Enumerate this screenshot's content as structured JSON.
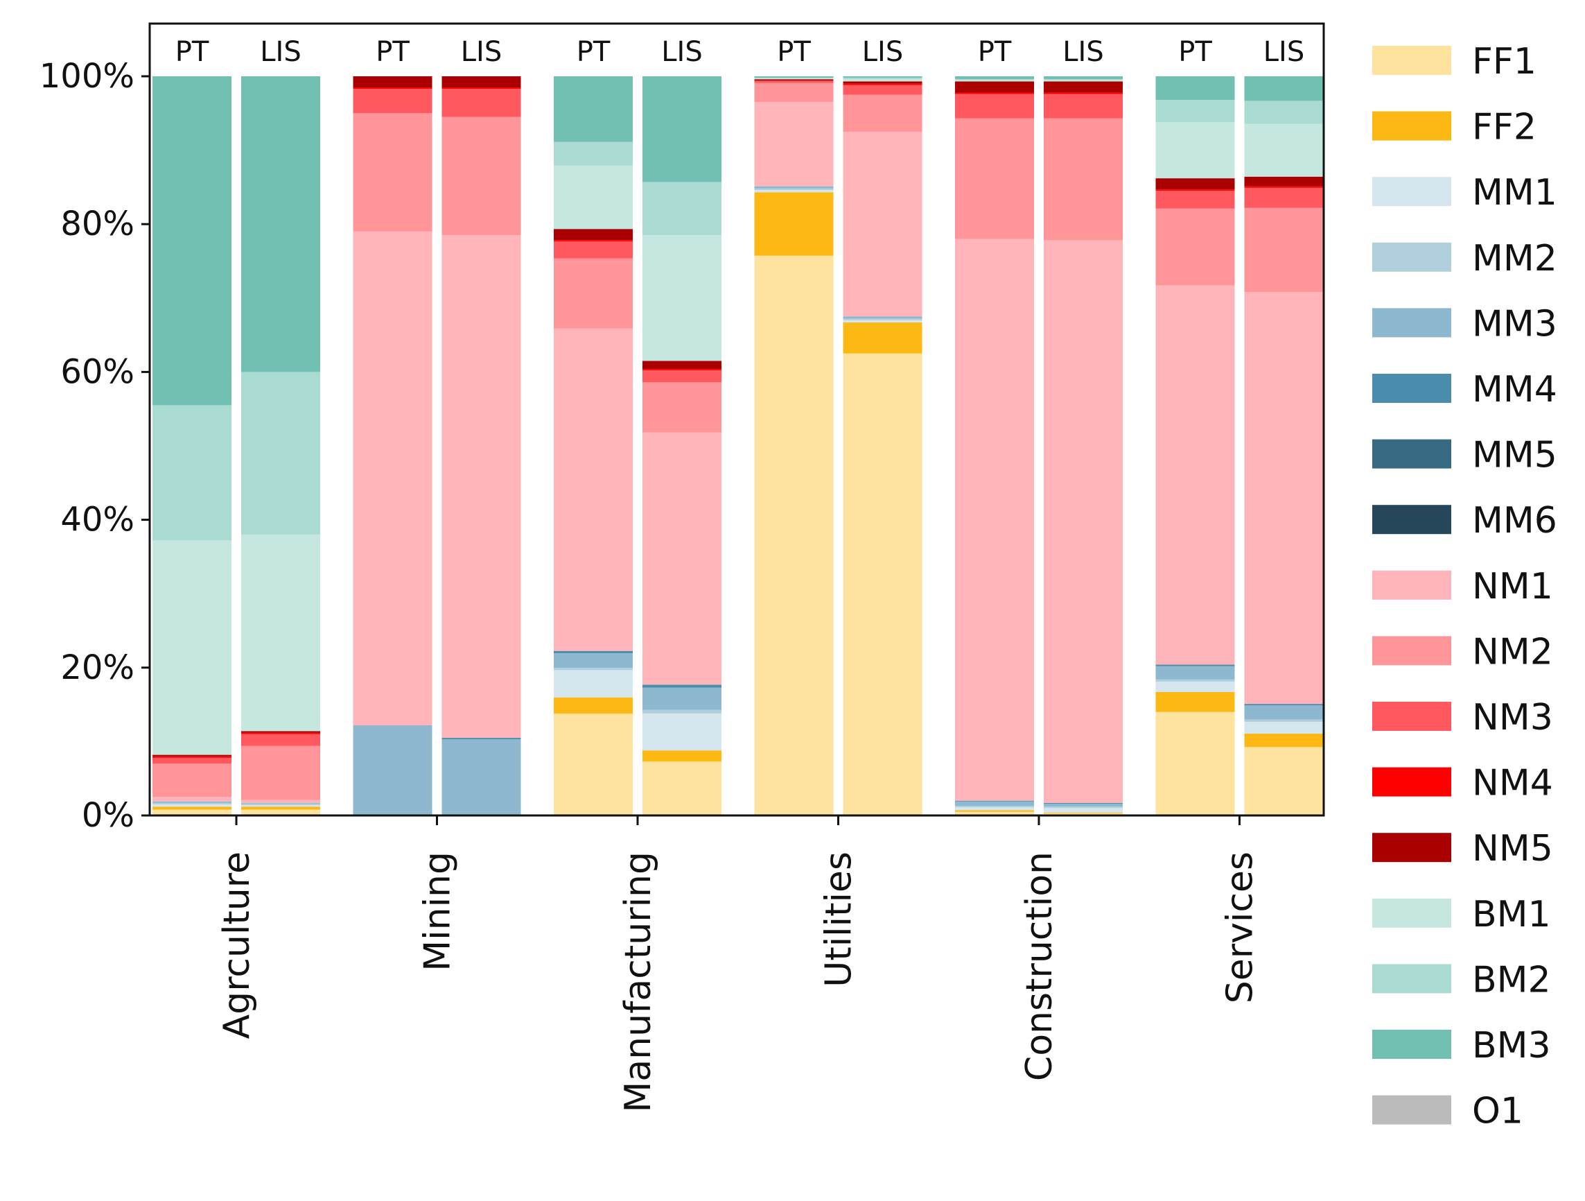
{
  "chart_data": {
    "type": "bar",
    "stacked": true,
    "title": "",
    "xlabel": "",
    "ylabel": "",
    "ylim": [
      0,
      100
    ],
    "y_ticks": [
      "0%",
      "20%",
      "40%",
      "60%",
      "80%",
      "100%"
    ],
    "grid": false,
    "legend_position": "right",
    "categories": [
      "Agrculture",
      "Mining",
      "Manufacturing",
      "Utilities",
      "Construction",
      "Services"
    ],
    "bar_labels": [
      "PT",
      "LIS"
    ],
    "components": [
      {
        "name": "FF1",
        "color": "#fee39f"
      },
      {
        "name": "FF2",
        "color": "#fdb813"
      },
      {
        "name": "MM1",
        "color": "#d6e6ee"
      },
      {
        "name": "MM2",
        "color": "#b0cfdd"
      },
      {
        "name": "MM3",
        "color": "#8db8cf"
      },
      {
        "name": "MM4",
        "color": "#4a8cac"
      },
      {
        "name": "MM5",
        "color": "#366a80"
      },
      {
        "name": "MM6",
        "color": "#26475a"
      },
      {
        "name": "NM1",
        "color": "#ffb4b9"
      },
      {
        "name": "NM2",
        "color": "#ff9599"
      },
      {
        "name": "NM3",
        "color": "#ff585f"
      },
      {
        "name": "NM4",
        "color": "#ff0000"
      },
      {
        "name": "NM5",
        "color": "#aa0000"
      },
      {
        "name": "BM1",
        "color": "#c6e7e0"
      },
      {
        "name": "BM2",
        "color": "#a9dbd2"
      },
      {
        "name": "BM3",
        "color": "#71c0b2"
      },
      {
        "name": "O1",
        "color": "#bbbbbb"
      }
    ],
    "bars": [
      {
        "category": "Agrculture",
        "label": "PT",
        "values": {
          "FF1": 0.8,
          "FF2": 0.4,
          "MM1": 0.3,
          "MM2": 0.2,
          "MM3": 0.2,
          "MM4": 0,
          "MM5": 0,
          "MM6": 0,
          "NM1": 0.6,
          "NM2": 4.5,
          "NM3": 0.8,
          "NM4": 0.2,
          "NM5": 0.2,
          "BM1": 29.0,
          "BM2": 18.3,
          "BM3": 44.5,
          "O1": 0
        }
      },
      {
        "category": "Agrculture",
        "label": "LIS",
        "values": {
          "FF1": 0.8,
          "FF2": 0.4,
          "MM1": 0.2,
          "MM2": 0.2,
          "MM3": 0.1,
          "MM4": 0,
          "MM5": 0,
          "MM6": 0,
          "NM1": 0.4,
          "NM2": 7.3,
          "NM3": 1.6,
          "NM4": 0.2,
          "NM5": 0.2,
          "BM1": 26.6,
          "BM2": 22.0,
          "BM3": 40.0,
          "O1": 0
        }
      },
      {
        "category": "Mining",
        "label": "PT",
        "values": {
          "FF1": 0,
          "FF2": 0,
          "MM1": 0,
          "MM2": 0,
          "MM3": 12.2,
          "MM4": 0,
          "MM5": 0,
          "MM6": 0,
          "NM1": 66.8,
          "NM2": 16.0,
          "NM3": 3.3,
          "NM4": 0.2,
          "NM5": 1.5,
          "BM1": 0,
          "BM2": 0,
          "BM3": 0,
          "O1": 0
        }
      },
      {
        "category": "Mining",
        "label": "LIS",
        "values": {
          "FF1": 0,
          "FF2": 0,
          "MM1": 0,
          "MM2": 0,
          "MM3": 10.3,
          "MM4": 0.2,
          "MM5": 0,
          "MM6": 0,
          "NM1": 68.0,
          "NM2": 16.0,
          "NM3": 3.8,
          "NM4": 0.2,
          "NM5": 1.5,
          "BM1": 0,
          "BM2": 0,
          "BM3": 0,
          "O1": 0
        }
      },
      {
        "category": "Manufacturing",
        "label": "PT",
        "values": {
          "FF1": 13.8,
          "FF2": 2.2,
          "MM1": 3.7,
          "MM2": 0.3,
          "MM3": 2.0,
          "MM4": 0.3,
          "MM5": 0,
          "MM6": 0,
          "NM1": 43.7,
          "NM2": 9.5,
          "NM3": 2.3,
          "NM4": 0.2,
          "NM5": 1.5,
          "BM1": 8.6,
          "BM2": 3.2,
          "BM3": 8.9,
          "O1": 0
        }
      },
      {
        "category": "Manufacturing",
        "label": "LIS",
        "values": {
          "FF1": 7.3,
          "FF2": 1.5,
          "MM1": 5.0,
          "MM2": 0.5,
          "MM3": 3.0,
          "MM4": 0.4,
          "MM5": 0,
          "MM6": 0,
          "NM1": 34.1,
          "NM2": 6.8,
          "NM3": 1.6,
          "NM4": 0.2,
          "NM5": 1.1,
          "BM1": 17.0,
          "BM2": 7.2,
          "BM3": 14.3,
          "O1": 0
        }
      },
      {
        "category": "Utilities",
        "label": "PT",
        "values": {
          "FF1": 75.8,
          "FF2": 8.6,
          "MM1": 0.3,
          "MM2": 0.2,
          "MM3": 0.3,
          "MM4": 0,
          "MM5": 0,
          "MM6": 0,
          "NM1": 11.4,
          "NM2": 2.6,
          "NM3": 0.3,
          "NM4": 0,
          "NM5": 0.2,
          "BM1": 0.1,
          "BM2": 0.1,
          "BM3": 0.2,
          "O1": 0
        }
      },
      {
        "category": "Utilities",
        "label": "LIS",
        "values": {
          "FF1": 62.5,
          "FF2": 4.2,
          "MM1": 0.3,
          "MM2": 0.2,
          "MM3": 0.3,
          "MM4": 0,
          "MM5": 0,
          "MM6": 0,
          "NM1": 25.0,
          "NM2": 5.0,
          "NM3": 1.3,
          "NM4": 0.2,
          "NM5": 0.3,
          "BM1": 0.3,
          "BM2": 0.2,
          "BM3": 0.2,
          "O1": 0
        }
      },
      {
        "category": "Construction",
        "label": "PT",
        "values": {
          "FF1": 0.5,
          "FF2": 0.2,
          "MM1": 0.4,
          "MM2": 0.2,
          "MM3": 0.6,
          "MM4": 0.1,
          "MM5": 0,
          "MM6": 0,
          "NM1": 76.0,
          "NM2": 16.3,
          "NM3": 3.3,
          "NM4": 0.2,
          "NM5": 1.5,
          "BM1": 0.2,
          "BM2": 0.1,
          "BM3": 0.4,
          "O1": 0
        }
      },
      {
        "category": "Construction",
        "label": "LIS",
        "values": {
          "FF1": 0.3,
          "FF2": 0.1,
          "MM1": 0.6,
          "MM2": 0.2,
          "MM3": 0.4,
          "MM4": 0.1,
          "MM5": 0,
          "MM6": 0,
          "NM1": 76.2,
          "NM2": 16.5,
          "NM3": 3.3,
          "NM4": 0.2,
          "NM5": 1.5,
          "BM1": 0.2,
          "BM2": 0.1,
          "BM3": 0.4,
          "O1": 0
        }
      },
      {
        "category": "Services",
        "label": "PT",
        "values": {
          "FF1": 14.0,
          "FF2": 2.7,
          "MM1": 1.4,
          "MM2": 0.3,
          "MM3": 1.8,
          "MM4": 0.2,
          "MM5": 0,
          "MM6": 0,
          "NM1": 51.3,
          "NM2": 10.4,
          "NM3": 2.4,
          "NM4": 0.2,
          "NM5": 1.5,
          "BM1": 7.6,
          "BM2": 3.0,
          "BM3": 3.2,
          "O1": 0
        }
      },
      {
        "category": "Services",
        "label": "LIS",
        "values": {
          "FF1": 9.2,
          "FF2": 1.8,
          "MM1": 1.6,
          "MM2": 0.3,
          "MM3": 1.9,
          "MM4": 0.2,
          "MM5": 0,
          "MM6": 0,
          "NM1": 55.4,
          "NM2": 11.3,
          "NM3": 2.7,
          "NM4": 0.2,
          "NM5": 1.3,
          "BM1": 7.1,
          "BM2": 3.1,
          "BM3": 3.3,
          "O1": 0
        }
      }
    ]
  }
}
